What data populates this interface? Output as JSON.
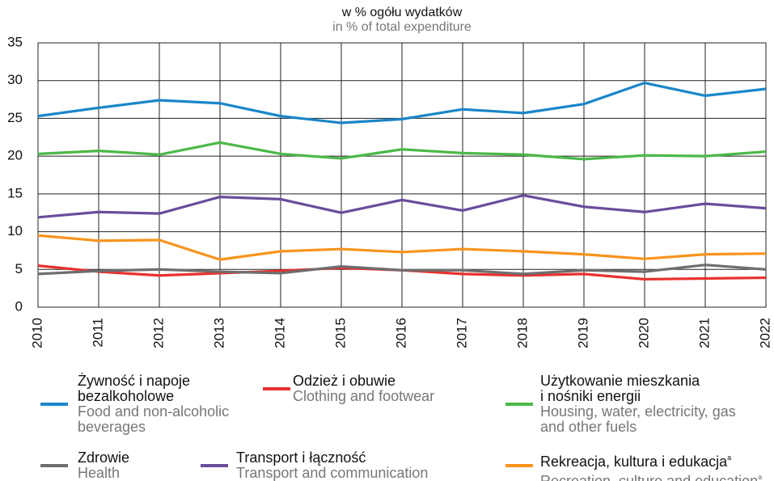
{
  "chart_data": {
    "type": "line",
    "title": "w % ogółu wydatków",
    "subtitle": "in % of total expenditure",
    "x": [
      "2010",
      "2011",
      "2012",
      "2013",
      "2014",
      "2015",
      "2016",
      "2017",
      "2018",
      "2019",
      "2020",
      "2021",
      "2022"
    ],
    "ylim": [
      0,
      35
    ],
    "yticks": [
      0,
      5,
      10,
      15,
      20,
      25,
      30,
      35
    ],
    "grid": true,
    "series": [
      {
        "name": "Żywność i napoje bezalkoholowe",
        "name_en": "Food and non-alcoholic beverages",
        "color": "#1a86c8",
        "values": [
          25.3,
          26.4,
          27.4,
          27.0,
          25.3,
          24.4,
          24.9,
          26.2,
          25.7,
          26.9,
          29.7,
          28.0,
          28.9
        ]
      },
      {
        "name": "Odzież i obuwie",
        "name_en": "Clothing and footwear",
        "color": "#e8312f",
        "values": [
          5.5,
          4.7,
          4.2,
          4.5,
          4.8,
          5.2,
          4.9,
          4.4,
          4.2,
          4.4,
          3.7,
          3.8,
          3.9
        ]
      },
      {
        "name": "Użytkowanie mieszkania i nośniki energii",
        "name_en": "Housing, water, electricity, gas and other fuels",
        "color": "#4cb848",
        "values": [
          20.3,
          20.7,
          20.2,
          21.8,
          20.3,
          19.7,
          20.9,
          20.4,
          20.2,
          19.6,
          20.1,
          20.0,
          20.6
        ]
      },
      {
        "name": "Zdrowie",
        "name_en": "Health",
        "color": "#6d6e70",
        "values": [
          4.4,
          4.8,
          5.0,
          4.7,
          4.5,
          5.4,
          4.9,
          4.9,
          4.4,
          4.9,
          4.7,
          5.6,
          5.0
        ]
      },
      {
        "name": "Transport i łączność",
        "name_en": "Transport and communication",
        "color": "#6a4c9c",
        "values": [
          11.9,
          12.6,
          12.4,
          14.6,
          14.3,
          12.5,
          14.2,
          12.8,
          14.8,
          13.3,
          12.6,
          13.7,
          13.1
        ]
      },
      {
        "name": "Rekreacja, kultura i edukacja",
        "name_en": "Recreation, culture and education",
        "footnote": "a",
        "color": "#f7941d",
        "values": [
          9.5,
          8.8,
          8.9,
          6.3,
          7.4,
          7.7,
          7.3,
          7.7,
          7.4,
          7.0,
          6.4,
          7.0,
          7.1
        ]
      }
    ]
  }
}
